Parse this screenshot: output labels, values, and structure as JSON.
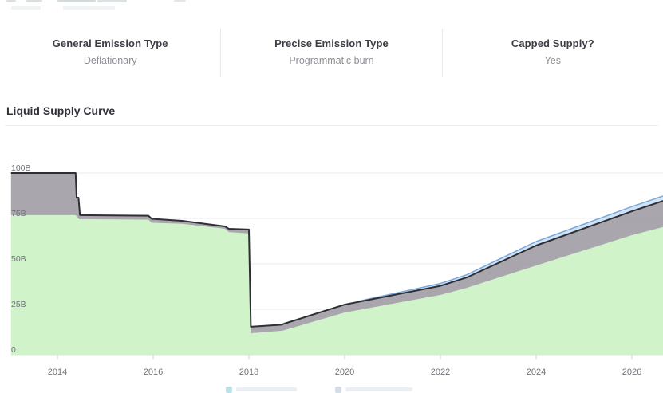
{
  "stats": {
    "columns": [
      {
        "label": "General Emission Type",
        "value": "Deflationary"
      },
      {
        "label": "Precise Emission Type",
        "value": "Programmatic burn"
      },
      {
        "label": "Capped Supply?",
        "value": "Yes"
      }
    ]
  },
  "section": {
    "title": "Liquid Supply Curve"
  },
  "chart_data": {
    "type": "area",
    "title": "Liquid Supply Curve",
    "unit": "B (billions of tokens)",
    "grid": "horizontal",
    "x_axis": {
      "range": [
        2013.03,
        2026.65
      ],
      "ticks": [
        2014,
        2016,
        2018,
        2020,
        2022,
        2024,
        2026
      ]
    },
    "y_axis": {
      "range": [
        0,
        105
      ],
      "tick_values": [
        100,
        75,
        50,
        25,
        0
      ],
      "tick_labels": [
        "100B",
        "75B",
        "50B",
        "25B",
        "0"
      ]
    },
    "series": [
      {
        "name": "liquid-supply-green-area",
        "type": "area-to-zero",
        "fill": "#cdf2c6",
        "points": [
          [
            2013.03,
            76.8
          ],
          [
            2014.38,
            76.8
          ],
          [
            2014.45,
            74.6
          ],
          [
            2015.9,
            74.3
          ],
          [
            2015.97,
            72.6
          ],
          [
            2016.6,
            72.0
          ],
          [
            2017.5,
            69.3
          ],
          [
            2017.58,
            67.5
          ],
          [
            2018.0,
            66.7
          ],
          [
            2018.04,
            11.8
          ],
          [
            2018.7,
            13.2
          ],
          [
            2020.0,
            23.2
          ],
          [
            2022.0,
            32.9
          ],
          [
            2022.55,
            36.8
          ],
          [
            2024.0,
            49.1
          ],
          [
            2026.0,
            65.8
          ],
          [
            2026.65,
            70.2
          ]
        ]
      },
      {
        "name": "total-supply-gray-band",
        "type": "stacked-band-over-previous",
        "fill": "#a3a0a7",
        "line_color": "#2e2e36",
        "points": [
          [
            2013.03,
            100.0
          ],
          [
            2014.38,
            100.0
          ],
          [
            2014.4,
            86.4
          ],
          [
            2014.44,
            86.4
          ],
          [
            2014.47,
            76.8
          ],
          [
            2015.9,
            76.5
          ],
          [
            2015.97,
            74.8
          ],
          [
            2016.6,
            73.7
          ],
          [
            2017.5,
            70.6
          ],
          [
            2017.58,
            69.3
          ],
          [
            2018.0,
            68.9
          ],
          [
            2018.04,
            15.4
          ],
          [
            2018.68,
            16.5
          ],
          [
            2018.74,
            17.1
          ],
          [
            2020.0,
            27.6
          ],
          [
            2022.0,
            37.9
          ],
          [
            2022.55,
            42.5
          ],
          [
            2024.0,
            60.1
          ],
          [
            2026.0,
            78.9
          ],
          [
            2026.65,
            84.6
          ]
        ]
      },
      {
        "name": "projected-supply-blue-band",
        "type": "band",
        "fill": "#cfe3f6",
        "line_color": "#79a8dc",
        "top_points": [
          [
            2020.3,
            29.5
          ],
          [
            2022.0,
            39.2
          ],
          [
            2022.55,
            44.0
          ],
          [
            2024.0,
            62.3
          ],
          [
            2026.0,
            81.5
          ],
          [
            2026.65,
            87.3
          ]
        ],
        "base_points": [
          [
            2020.3,
            29.1
          ],
          [
            2022.0,
            37.9
          ],
          [
            2022.55,
            42.5
          ],
          [
            2024.0,
            60.1
          ],
          [
            2026.0,
            78.9
          ],
          [
            2026.65,
            84.6
          ]
        ]
      }
    ],
    "colors": {
      "gridline": "#ebebf0",
      "baseline": "#e1e1e7",
      "tick": "#cfcfd6",
      "axis_text": "#71717b"
    },
    "legend": {
      "partially_cut_off": true,
      "swatch_colors": [
        "#7fccd4",
        "#b2c4d8"
      ]
    }
  }
}
